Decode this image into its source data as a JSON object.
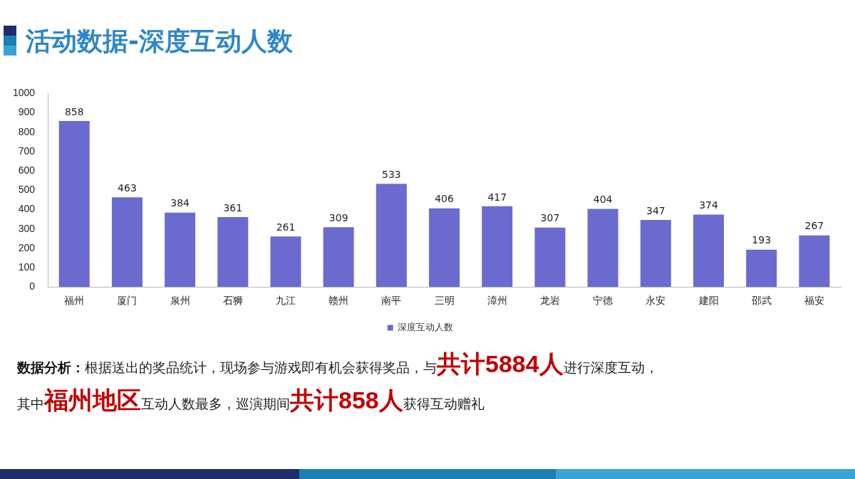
{
  "chart_data": {
    "type": "bar",
    "title": "活动数据-深度互动人数",
    "categories": [
      "福州",
      "厦门",
      "泉州",
      "石狮",
      "九江",
      "赣州",
      "南平",
      "三明",
      "漳州",
      "龙岩",
      "宁德",
      "永安",
      "建阳",
      "邵武",
      "福安"
    ],
    "series": [
      {
        "name": "深度互动人数",
        "color": "#6b6bcf",
        "values": [
          858,
          463,
          384,
          361,
          261,
          309,
          533,
          406,
          417,
          307,
          404,
          347,
          374,
          193,
          267
        ]
      }
    ],
    "ylim": [
      0,
      1000
    ],
    "yticks": [
      0,
      100,
      200,
      300,
      400,
      500,
      600,
      700,
      800,
      900,
      1000
    ],
    "grid": false,
    "legend": "bottom",
    "data_labels": true,
    "annotations": [
      "数据分析：",
      "根据送出的奖品统计，现场参与游戏即有机会获得奖品，与",
      "共计5884人",
      "进行深度互动，",
      "其中",
      "福州地区",
      "互动人数最多，巡演期间",
      "共计858人",
      "获得互动赠礼"
    ]
  }
}
